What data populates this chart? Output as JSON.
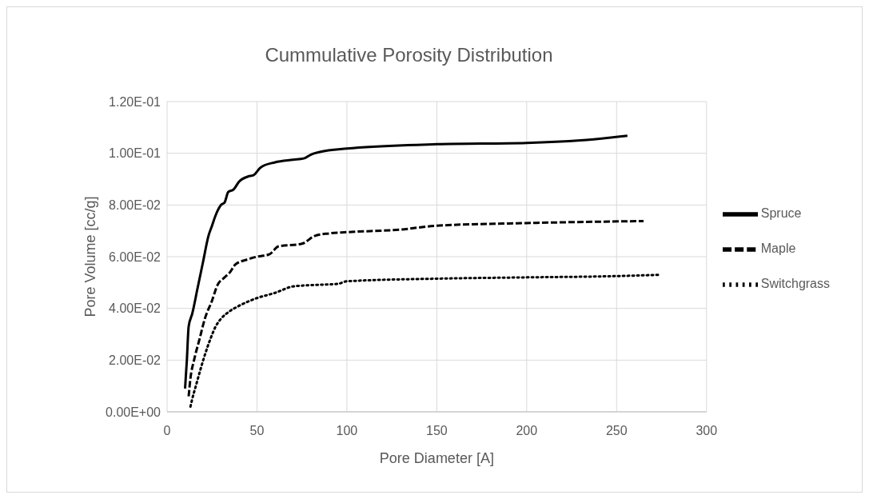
{
  "chart_data": {
    "type": "line",
    "title": "Cummulative Porosity Distribution",
    "xlabel": "Pore Diameter [A]",
    "ylabel": "Pore Volume [cc/g]",
    "xlim": [
      0,
      300
    ],
    "xticks": [
      0,
      50,
      100,
      150,
      200,
      250,
      300
    ],
    "ylim": [
      0,
      0.12
    ],
    "yticks": [
      {
        "value": 0,
        "label": "0.00E+00"
      },
      {
        "value": 0.02,
        "label": "2.00E-02"
      },
      {
        "value": 0.04,
        "label": "4.00E-02"
      },
      {
        "value": 0.06,
        "label": "6.00E-02"
      },
      {
        "value": 0.08,
        "label": "8.00E-02"
      },
      {
        "value": 0.1,
        "label": "1.00E-01"
      },
      {
        "value": 0.12,
        "label": "1.20E-01"
      }
    ],
    "grid": true,
    "legend": "right",
    "marker": "none",
    "series": [
      {
        "name": "Spruce",
        "color": "#000000",
        "line_style": "solid",
        "x": [
          10,
          11,
          12,
          14,
          17,
          20,
          23,
          25,
          27,
          30,
          32,
          34,
          37,
          40,
          45,
          48,
          52,
          60,
          70,
          76,
          80,
          85,
          100,
          150,
          200,
          230,
          256
        ],
        "values": [
          0.009,
          0.02,
          0.033,
          0.038,
          0.048,
          0.058,
          0.068,
          0.072,
          0.076,
          0.08,
          0.081,
          0.085,
          0.086,
          0.089,
          0.091,
          0.0915,
          0.0945,
          0.0965,
          0.0975,
          0.098,
          0.0995,
          0.1005,
          0.1018,
          0.1035,
          0.104,
          0.105,
          0.1068
        ]
      },
      {
        "name": "Maple",
        "color": "#000000",
        "line_style": "dashed",
        "x": [
          12,
          13,
          15,
          18,
          21,
          25,
          28,
          32,
          35,
          38,
          45,
          50,
          57,
          62,
          75,
          82,
          90,
          100,
          130,
          150,
          200,
          265
        ],
        "values": [
          0.006,
          0.013,
          0.02,
          0.028,
          0.036,
          0.043,
          0.049,
          0.052,
          0.054,
          0.057,
          0.059,
          0.06,
          0.061,
          0.064,
          0.065,
          0.068,
          0.069,
          0.0695,
          0.0705,
          0.072,
          0.073,
          0.0738
        ]
      },
      {
        "name": "Switchgrass",
        "color": "#000000",
        "line_style": "dotted",
        "x": [
          13,
          14,
          16,
          18,
          21,
          24,
          27,
          30,
          35,
          40,
          50,
          60,
          70,
          80,
          95,
          100,
          150,
          200,
          250,
          274
        ],
        "values": [
          0.002,
          0.005,
          0.01,
          0.015,
          0.022,
          0.028,
          0.033,
          0.036,
          0.039,
          0.041,
          0.044,
          0.046,
          0.0485,
          0.049,
          0.0495,
          0.0505,
          0.0515,
          0.052,
          0.0525,
          0.053
        ]
      }
    ]
  }
}
